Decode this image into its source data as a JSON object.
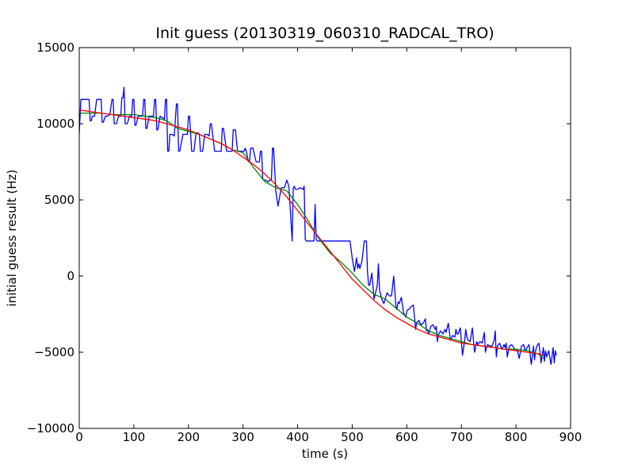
{
  "chart_data": {
    "type": "line",
    "title": "Init guess (20130319_060310_RADCAL_TRO)",
    "xlabel": "time (s)",
    "ylabel": "initial guess result (Hz)",
    "xlim": [
      0,
      900
    ],
    "ylim": [
      -10000,
      15000
    ],
    "x_ticks": [
      0,
      100,
      200,
      300,
      400,
      500,
      600,
      700,
      800,
      900
    ],
    "x_tick_labels": [
      "0",
      "100",
      "200",
      "300",
      "400",
      "500",
      "600",
      "700",
      "800",
      "900"
    ],
    "y_ticks": [
      -10000,
      -5000,
      0,
      5000,
      10000,
      15000
    ],
    "y_tick_labels": [
      "−10000",
      "−5000",
      "0",
      "5000",
      "10000",
      "15000"
    ],
    "grid": false,
    "legend": "none",
    "series": [
      {
        "color": "#0000ff",
        "x": [
          0,
          3,
          6,
          10,
          14,
          18,
          20,
          22,
          24,
          28,
          32,
          36,
          40,
          42,
          44,
          48,
          52,
          56,
          60,
          62,
          64,
          68,
          72,
          76,
          78,
          80,
          82,
          84,
          88,
          92,
          96,
          98,
          100,
          102,
          104,
          108,
          112,
          116,
          118,
          120,
          122,
          124,
          128,
          132,
          136,
          138,
          140,
          142,
          144,
          148,
          152,
          156,
          158,
          160,
          162,
          164,
          166,
          170,
          174,
          178,
          180,
          182,
          184,
          190,
          194,
          198,
          200,
          202,
          206,
          210,
          214,
          218,
          220,
          222,
          226,
          230,
          234,
          238,
          240,
          242,
          248,
          254,
          260,
          262,
          264,
          270,
          274,
          278,
          280,
          282,
          286,
          290,
          296,
          300,
          302,
          304,
          306,
          310,
          312,
          314,
          318,
          324,
          330,
          332,
          334,
          336,
          338,
          342,
          346,
          350,
          352,
          354,
          356,
          360,
          364,
          370,
          372,
          374,
          376,
          380,
          384,
          390,
          392,
          394,
          396,
          400,
          404,
          410,
          412,
          414,
          416,
          420,
          424,
          430,
          432,
          434,
          436,
          440,
          450,
          460,
          470,
          480,
          490,
          492,
          496,
          500,
          504,
          508,
          510,
          512,
          514,
          518,
          522,
          526,
          528,
          530,
          532,
          536,
          540,
          544,
          546,
          548,
          550,
          554,
          558,
          562,
          564,
          566,
          568,
          572,
          576,
          580,
          582,
          584,
          586,
          590,
          594,
          598,
          600,
          602,
          604,
          608,
          612,
          616,
          618,
          620,
          622,
          626,
          630,
          634,
          636,
          638,
          640,
          644,
          648,
          652,
          654,
          656,
          658,
          662,
          666,
          670,
          672,
          674,
          676,
          680,
          684,
          688,
          690,
          692,
          694,
          698,
          702,
          706,
          708,
          710,
          712,
          716,
          720,
          724,
          726,
          728,
          730,
          734,
          738,
          742,
          744,
          746,
          748,
          752,
          756,
          760,
          762,
          764,
          766,
          770,
          774,
          778,
          780,
          782,
          784,
          788,
          792,
          796,
          798,
          800,
          802,
          806,
          810,
          814,
          816,
          818,
          820,
          824,
          828,
          832,
          834,
          836,
          838,
          842,
          846,
          850,
          852,
          854,
          856,
          860,
          864,
          868,
          870,
          872,
          874
        ],
        "y": [
          9400,
          11600,
          11600,
          11600,
          11600,
          11600,
          10200,
          10200,
          10500,
          10500,
          11600,
          11600,
          11600,
          10100,
          10100,
          10500,
          10500,
          10600,
          11600,
          11600,
          10000,
          10000,
          10500,
          10500,
          11700,
          11700,
          12400,
          10000,
          10000,
          10500,
          10500,
          11600,
          11600,
          9900,
          9900,
          10500,
          10500,
          10500,
          11600,
          11600,
          9700,
          9700,
          10500,
          10500,
          10500,
          11600,
          11600,
          9600,
          9600,
          10500,
          10400,
          10300,
          11600,
          11600,
          8200,
          8200,
          9300,
          9300,
          9200,
          11300,
          11300,
          8200,
          8200,
          9300,
          9300,
          9300,
          10500,
          10500,
          8200,
          8200,
          9400,
          9400,
          9300,
          8200,
          8200,
          9300,
          9300,
          9200,
          10000,
          10000,
          8200,
          8200,
          8200,
          9700,
          9700,
          8200,
          8200,
          8200,
          8200,
          9600,
          9600,
          8200,
          8200,
          8200,
          8200,
          8400,
          8200,
          7500,
          7500,
          8400,
          8400,
          7500,
          7500,
          8200,
          8200,
          6400,
          6300,
          6300,
          6200,
          6300,
          6300,
          8400,
          8400,
          5600,
          4600,
          5800,
          5800,
          5800,
          5800,
          6300,
          5900,
          2300,
          5800,
          5900,
          5700,
          5700,
          5800,
          5700,
          5900,
          2400,
          2300,
          2300,
          2300,
          2300,
          4700,
          2400,
          2300,
          2300,
          2300,
          2300,
          2300,
          2300,
          2300,
          2300,
          2300,
          1200,
          300,
          1200,
          500,
          800,
          500,
          1000,
          2300,
          2300,
          300,
          -600,
          -600,
          200,
          -1500,
          -900,
          -600,
          800,
          -900,
          -1500,
          -1800,
          -1300,
          -1100,
          -1200,
          -1300,
          -1300,
          0,
          -2000,
          -2200,
          -1700,
          -1800,
          -1400,
          -2400,
          -2700,
          -2300,
          -2200,
          -2200,
          -2000,
          -1900,
          -3500,
          -3100,
          -3000,
          -2900,
          -3200,
          -3100,
          -2800,
          -3600,
          -3500,
          -3800,
          -3300,
          -3200,
          -3500,
          -3300,
          -4300,
          -3800,
          -3600,
          -3800,
          -3500,
          -3700,
          -3400,
          -3100,
          -4200,
          -3900,
          -4000,
          -3500,
          -3800,
          -3800,
          -3400,
          -5200,
          -4200,
          -3500,
          -4000,
          -4200,
          -4300,
          -3400,
          -5000,
          -4700,
          -4300,
          -4500,
          -4300,
          -4400,
          -3700,
          -5000,
          -4700,
          -4500,
          -4600,
          -4600,
          -4200,
          -3600,
          -5300,
          -4600,
          -4400,
          -4800,
          -4500,
          -4700,
          -4400,
          -5300,
          -4600,
          -4500,
          -4700,
          -4900,
          -4900,
          -4800,
          -5400,
          -4600,
          -4500,
          -4800,
          -4900,
          -4700,
          -4500,
          -5800,
          -4600,
          -5500,
          -4900,
          -4600,
          -4400,
          -5700,
          -4700,
          -5600,
          -4900,
          -5300,
          -4900,
          -5800,
          -4700,
          -5700,
          -4900,
          -5200
        ]
      },
      {
        "color": "#008000",
        "x": [
          0,
          20,
          40,
          60,
          80,
          100,
          120,
          140,
          160,
          180,
          200,
          220,
          240,
          260,
          280,
          300,
          320,
          340,
          360,
          380,
          400,
          420,
          440,
          460,
          480,
          500,
          520,
          540,
          560,
          580,
          600,
          620,
          640,
          660,
          680,
          700,
          720,
          740,
          760,
          780,
          800,
          820,
          840,
          850
        ],
        "y": [
          10700,
          10700,
          10700,
          10600,
          10600,
          10600,
          10500,
          10400,
          10200,
          9700,
          9500,
          9300,
          9000,
          8700,
          8300,
          8100,
          7100,
          6200,
          5800,
          5600,
          4700,
          3600,
          2400,
          1500,
          900,
          200,
          -600,
          -1200,
          -1500,
          -2100,
          -2700,
          -3100,
          -3600,
          -3900,
          -4100,
          -4300,
          -4500,
          -4600,
          -4700,
          -4800,
          -4800,
          -4900,
          -5100,
          -5400
        ]
      },
      {
        "color": "#ff0000",
        "x": [
          0,
          20,
          40,
          60,
          80,
          100,
          120,
          140,
          160,
          180,
          200,
          220,
          240,
          260,
          280,
          300,
          320,
          340,
          360,
          380,
          400,
          420,
          440,
          460,
          480,
          500,
          520,
          540,
          560,
          580,
          600,
          620,
          640,
          660,
          680,
          700,
          720,
          740,
          760,
          780,
          800,
          820,
          840,
          850
        ],
        "y": [
          10900,
          10800,
          10700,
          10600,
          10500,
          10400,
          10300,
          10200,
          10000,
          9800,
          9600,
          9300,
          9000,
          8700,
          8300,
          7800,
          7300,
          6700,
          6000,
          5200,
          4300,
          3400,
          2500,
          1600,
          700,
          -200,
          -900,
          -1600,
          -2200,
          -2700,
          -3100,
          -3500,
          -3800,
          -4000,
          -4200,
          -4400,
          -4500,
          -4600,
          -4700,
          -4800,
          -4900,
          -5000,
          -5100,
          -5200
        ]
      }
    ]
  }
}
